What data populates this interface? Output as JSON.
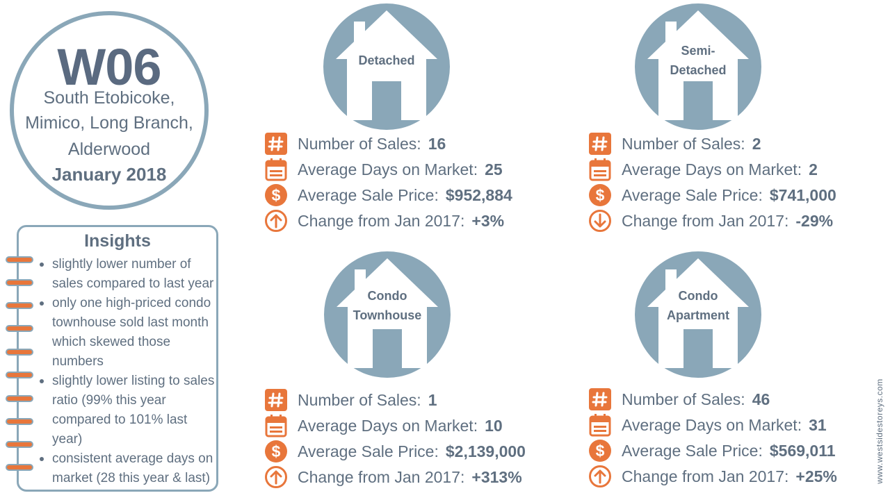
{
  "header": {
    "code": "W06",
    "area_lines": [
      "South Etobicoke,",
      "Mimico, Long Branch,",
      "Alderwood"
    ],
    "period": "January 2018"
  },
  "insights": {
    "title": "Insights",
    "items": [
      "slightly lower number of sales compared to last year",
      "only one high-priced condo townhouse sold last month which skewed those numbers",
      "slightly lower listing to sales ratio (99% this year compared to 101% last year)",
      "consistent average days on market (28 this year & last)"
    ]
  },
  "labels": {
    "sales": "Number of Sales:",
    "days": "Average Days on Market:",
    "price": "Average Sale Price:",
    "change": "Change from Jan 2017:"
  },
  "categories": [
    {
      "house_lines": [
        "Detached"
      ],
      "sales": "16",
      "days": "25",
      "price": "$952,884",
      "change": "+3%",
      "trend": "up"
    },
    {
      "house_lines": [
        "Semi-",
        "Detached"
      ],
      "sales": "2",
      "days": "2",
      "price": "$741,000",
      "change": "-29%",
      "trend": "down"
    },
    {
      "house_lines": [
        "Condo",
        "Townhouse"
      ],
      "sales": "1",
      "days": "10",
      "price": "$2,139,000",
      "change": "+313%",
      "trend": "up"
    },
    {
      "house_lines": [
        "Condo",
        "Apartment"
      ],
      "sales": "46",
      "days": "31",
      "price": "$569,011",
      "change": "+25%",
      "trend": "up"
    }
  ],
  "icons": {
    "sales": "hash-icon",
    "days": "calendar-icon",
    "price": "dollar-icon",
    "up": "arrow-up-circle-icon",
    "down": "arrow-down-circle-icon"
  },
  "colors": {
    "accent": "#e8763b",
    "circle": "#8aa7b8",
    "text": "#5f6f80"
  },
  "watermark": "www.westsidestoreys.com"
}
